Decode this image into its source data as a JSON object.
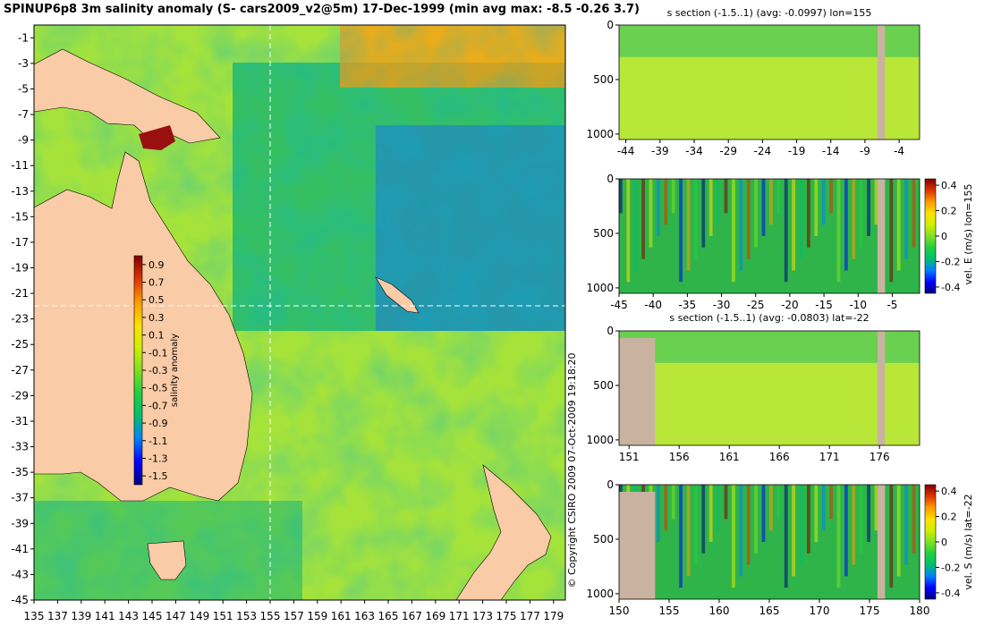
{
  "title": "SPINUP6p8 3m salinity anomaly (S- cars2009_v2@5m) 17-Dec-1999 (min avg max: -8.5 -0.26 3.7)",
  "copyright": "© Copyright CSIRO 2009   07-Oct-2009 19:18:20",
  "colors": {
    "land": "#f9cba6",
    "section_land": "#c9b3a0",
    "colormap": [
      "#00007f",
      "#0000ff",
      "#0080ff",
      "#00c070",
      "#20d040",
      "#80e020",
      "#d0f000",
      "#ffe000",
      "#ff9900",
      "#dd3300",
      "#800000"
    ]
  },
  "chart_data": [
    {
      "type": "heatmap",
      "name": "surface-map",
      "x_ticks": [
        "135",
        "137",
        "139",
        "141",
        "143",
        "145",
        "147",
        "149",
        "151",
        "153",
        "155",
        "157",
        "159",
        "161",
        "163",
        "165",
        "167",
        "169",
        "171",
        "173",
        "175",
        "177",
        "179"
      ],
      "y_ticks": [
        "-1",
        "-3",
        "-5",
        "-7",
        "-9",
        "-11",
        "-13",
        "-15",
        "-17",
        "-19",
        "-21",
        "-23",
        "-25",
        "-27",
        "-29",
        "-31",
        "-33",
        "-35",
        "-37",
        "-39",
        "-41",
        "-43",
        "-45"
      ],
      "xlim": [
        135,
        180
      ],
      "ylim": [
        -45,
        0
      ],
      "section_lines": {
        "lon": 155,
        "lat": -22
      },
      "colorbar": {
        "label": "salinity anomaly",
        "ticks": [
          "0.9",
          "0.7",
          "0.5",
          "0.3",
          "0.1",
          "-0.1",
          "-0.3",
          "-0.5",
          "-0.7",
          "-0.9",
          "-1.1",
          "-1.3",
          "-1.5"
        ],
        "range": [
          -1.6,
          1.0
        ]
      }
    },
    {
      "type": "heatmap",
      "name": "salinity-section-lon155",
      "title": "s section (-1.5..1) (avg: -0.0997) lon=155",
      "x_ticks": [
        "-44",
        "-39",
        "-34",
        "-29",
        "-24",
        "-19",
        "-14",
        "-9",
        "-4"
      ],
      "y_ticks": [
        "0",
        "500",
        "1000"
      ],
      "xlim": [
        -45,
        -1
      ],
      "ylim": [
        1050,
        0
      ]
    },
    {
      "type": "heatmap",
      "name": "velocity-east-section-lon155",
      "x_ticks": [
        "-45",
        "-40",
        "-35",
        "-30",
        "-25",
        "-20",
        "-15",
        "-10",
        "-5"
      ],
      "y_ticks": [
        "0",
        "500",
        "1000"
      ],
      "xlim": [
        -45,
        -1
      ],
      "ylim": [
        1050,
        0
      ],
      "colorbar": {
        "label": "vel. E (m/s) lon=155",
        "ticks": [
          "0.4",
          "0.2",
          "0",
          "-0.2",
          "-0.4"
        ],
        "range": [
          -0.45,
          0.45
        ]
      }
    },
    {
      "type": "heatmap",
      "name": "salinity-section-lat-22",
      "title": "s section (-1.5..1) (avg: -0.0803) lat=-22",
      "x_ticks": [
        "151",
        "156",
        "161",
        "166",
        "171",
        "176"
      ],
      "y_ticks": [
        "0",
        "500",
        "1000"
      ],
      "xlim": [
        150,
        180
      ],
      "ylim": [
        1050,
        0
      ]
    },
    {
      "type": "heatmap",
      "name": "velocity-south-section-lat-22",
      "x_ticks": [
        "150",
        "155",
        "160",
        "165",
        "170",
        "175",
        "180"
      ],
      "y_ticks": [
        "0",
        "500",
        "1000"
      ],
      "xlim": [
        150,
        180
      ],
      "ylim": [
        1050,
        0
      ],
      "colorbar": {
        "label": "vel. S (m/s) lat=-22",
        "ticks": [
          "0.4",
          "0.2",
          "0",
          "-0.2",
          "-0.4"
        ],
        "range": [
          -0.45,
          0.45
        ]
      }
    }
  ]
}
